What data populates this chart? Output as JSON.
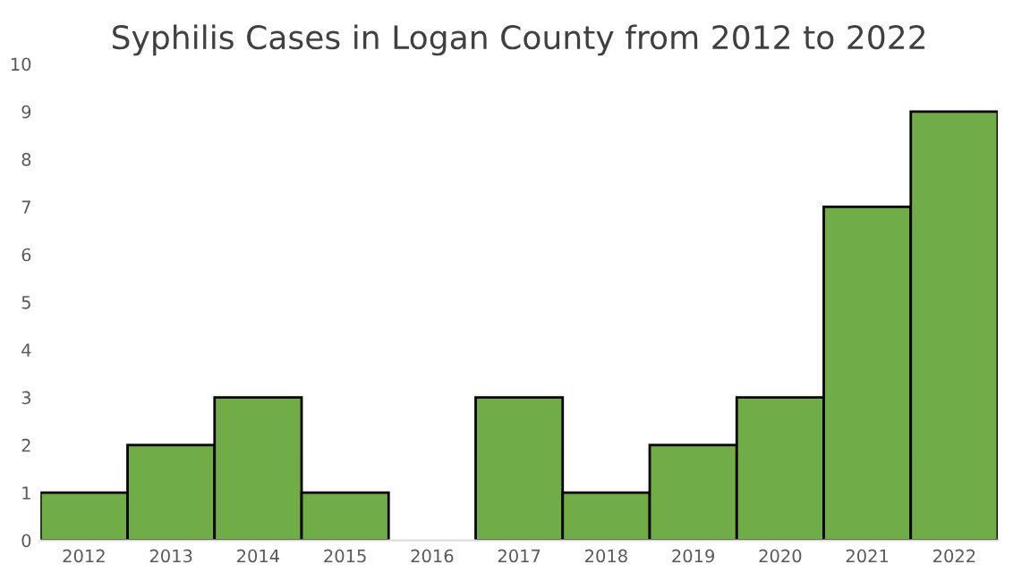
{
  "chart_data": {
    "type": "bar",
    "title": "Syphilis Cases in Logan County from 2012 to 2022",
    "categories": [
      "2012",
      "2013",
      "2014",
      "2015",
      "2016",
      "2017",
      "2018",
      "2019",
      "2020",
      "2021",
      "2022"
    ],
    "values": [
      1,
      2,
      3,
      1,
      0,
      3,
      1,
      2,
      3,
      7,
      9
    ],
    "color": "#70ad47",
    "ylim": [
      0,
      10
    ],
    "yticks": [
      0,
      1,
      2,
      3,
      4,
      5,
      6,
      7,
      8,
      9,
      10
    ],
    "grid": false
  }
}
